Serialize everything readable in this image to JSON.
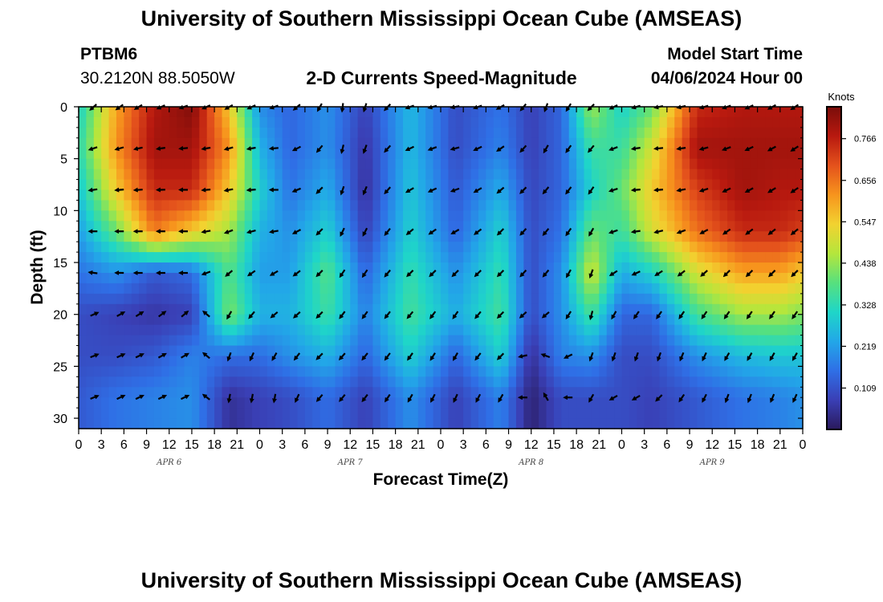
{
  "header": {
    "title": "University of Southern Mississippi Ocean Cube (AMSEAS)",
    "station_id": "PTBM6",
    "station_coords": "30.2120N  88.5050W",
    "subtitle": "2-D Currents Speed-Magnitude",
    "model_start_label": "Model Start Time",
    "model_start_value": "04/06/2024 Hour 00"
  },
  "footer": {
    "title": "University of Southern Mississippi Ocean Cube (AMSEAS)"
  },
  "colors": {
    "scale": [
      "#2a1a5c",
      "#3a3fb5",
      "#2f6fe6",
      "#22a7e8",
      "#1fd6c8",
      "#57e07e",
      "#b5e63c",
      "#f2d230",
      "#f7941d",
      "#e4521c",
      "#b8190f",
      "#7a0d0a"
    ]
  },
  "chart_data": {
    "type": "heatmap",
    "title": "2-D Currents Speed-Magnitude",
    "xlabel": "Forecast Time(Z)",
    "ylabel": "Depth (ft)",
    "xlim": [
      0,
      96
    ],
    "ylim": [
      0,
      31
    ],
    "x_ticks": [
      "0",
      "3",
      "6",
      "9",
      "12",
      "15",
      "18",
      "21",
      "0",
      "3",
      "6",
      "9",
      "12",
      "15",
      "18",
      "21",
      "0",
      "3",
      "6",
      "9",
      "12",
      "15",
      "18",
      "21",
      "0",
      "3",
      "6",
      "9",
      "12",
      "15",
      "18",
      "21",
      "0"
    ],
    "y_ticks": [
      "0",
      "5",
      "10",
      "15",
      "20",
      "25",
      "30"
    ],
    "y_tick_values": [
      0,
      5,
      10,
      15,
      20,
      25,
      30
    ],
    "date_labels": [
      {
        "label": "APR 6",
        "hour": 12
      },
      {
        "label": "APR 7",
        "hour": 36
      },
      {
        "label": "APR 8",
        "hour": 60
      },
      {
        "label": "APR 9",
        "hour": 84
      }
    ],
    "colorbar": {
      "units": "Knots",
      "range": [
        0,
        0.85
      ],
      "ticks": [
        "0.766",
        "0.656",
        "0.547",
        "0.438",
        "0.328",
        "0.219",
        "0.109"
      ],
      "tick_values": [
        0.766,
        0.656,
        0.547,
        0.438,
        0.328,
        0.219,
        0.109
      ]
    },
    "arrow_depths_ft": [
      0,
      4,
      8,
      12,
      16,
      20,
      24,
      28
    ],
    "arrow_hours": [
      2,
      5.5,
      8,
      11,
      14,
      17,
      20,
      23,
      26,
      29,
      32,
      35,
      38,
      41,
      44,
      47,
      50,
      53,
      56,
      59,
      62,
      65,
      68,
      71,
      74,
      77,
      80,
      83,
      86,
      89,
      92,
      95
    ],
    "speed_anchors": [
      {
        "hour": 0,
        "speeds": [
          0.3,
          0.33,
          0.28,
          0.22,
          0.16,
          0.1,
          0.1,
          0.12
        ]
      },
      {
        "hour": 5,
        "speeds": [
          0.6,
          0.62,
          0.55,
          0.4,
          0.2,
          0.08,
          0.1,
          0.16
        ]
      },
      {
        "hour": 10,
        "speeds": [
          0.78,
          0.8,
          0.75,
          0.65,
          0.12,
          0.06,
          0.12,
          0.18
        ]
      },
      {
        "hour": 15,
        "speeds": [
          0.84,
          0.8,
          0.75,
          0.55,
          0.15,
          0.08,
          0.18,
          0.2
        ]
      },
      {
        "hour": 20,
        "speeds": [
          0.55,
          0.62,
          0.55,
          0.45,
          0.38,
          0.42,
          0.15,
          0.05
        ]
      },
      {
        "hour": 24,
        "speeds": [
          0.2,
          0.25,
          0.3,
          0.25,
          0.22,
          0.25,
          0.15,
          0.08
        ]
      },
      {
        "hour": 28,
        "speeds": [
          0.14,
          0.14,
          0.16,
          0.2,
          0.22,
          0.25,
          0.2,
          0.1
        ]
      },
      {
        "hour": 33,
        "speeds": [
          0.2,
          0.2,
          0.24,
          0.3,
          0.38,
          0.35,
          0.25,
          0.15
        ]
      },
      {
        "hour": 38,
        "speeds": [
          0.08,
          0.06,
          0.05,
          0.08,
          0.14,
          0.18,
          0.14,
          0.08
        ]
      },
      {
        "hour": 44,
        "speeds": [
          0.26,
          0.26,
          0.28,
          0.3,
          0.34,
          0.36,
          0.3,
          0.2
        ]
      },
      {
        "hour": 50,
        "speeds": [
          0.1,
          0.1,
          0.12,
          0.14,
          0.2,
          0.24,
          0.14,
          0.08
        ]
      },
      {
        "hour": 56,
        "speeds": [
          0.16,
          0.18,
          0.24,
          0.3,
          0.34,
          0.36,
          0.3,
          0.18
        ]
      },
      {
        "hour": 60,
        "speeds": [
          0.08,
          0.08,
          0.09,
          0.1,
          0.1,
          0.1,
          0.05,
          0.02
        ]
      },
      {
        "hour": 64,
        "speeds": [
          0.14,
          0.14,
          0.14,
          0.16,
          0.2,
          0.2,
          0.18,
          0.1
        ]
      },
      {
        "hour": 68,
        "speeds": [
          0.45,
          0.35,
          0.3,
          0.4,
          0.5,
          0.36,
          0.2,
          0.1
        ]
      },
      {
        "hour": 72,
        "speeds": [
          0.3,
          0.35,
          0.4,
          0.35,
          0.24,
          0.14,
          0.1,
          0.1
        ]
      },
      {
        "hour": 76,
        "speeds": [
          0.4,
          0.5,
          0.55,
          0.5,
          0.3,
          0.14,
          0.1,
          0.08
        ]
      },
      {
        "hour": 82,
        "speeds": [
          0.75,
          0.8,
          0.72,
          0.66,
          0.5,
          0.36,
          0.2,
          0.12
        ]
      },
      {
        "hour": 88,
        "speeds": [
          0.78,
          0.8,
          0.8,
          0.75,
          0.6,
          0.45,
          0.26,
          0.16
        ]
      },
      {
        "hour": 93,
        "speeds": [
          0.78,
          0.8,
          0.78,
          0.75,
          0.6,
          0.45,
          0.28,
          0.18
        ]
      },
      {
        "hour": 96,
        "speeds": [
          0.78,
          0.8,
          0.78,
          0.72,
          0.55,
          0.42,
          0.28,
          0.2
        ]
      }
    ],
    "direction_anchors_deg": [
      {
        "hour": 0,
        "dirs": [
          225,
          200,
          190,
          180,
          170,
          20,
          20,
          20
        ]
      },
      {
        "hour": 6,
        "dirs": [
          215,
          195,
          185,
          180,
          180,
          30,
          25,
          25
        ]
      },
      {
        "hour": 14,
        "dirs": [
          200,
          185,
          180,
          180,
          180,
          40,
          30,
          25
        ]
      },
      {
        "hour": 20,
        "dirs": [
          210,
          195,
          190,
          200,
          220,
          240,
          250,
          260
        ]
      },
      {
        "hour": 26,
        "dirs": [
          200,
          185,
          180,
          190,
          210,
          220,
          240,
          260
        ]
      },
      {
        "hour": 32,
        "dirs": [
          240,
          230,
          225,
          225,
          225,
          225,
          225,
          230
        ]
      },
      {
        "hour": 36,
        "dirs": [
          270,
          265,
          260,
          250,
          240,
          235,
          230,
          230
        ]
      },
      {
        "hour": 44,
        "dirs": [
          200,
          205,
          210,
          220,
          225,
          230,
          235,
          240
        ]
      },
      {
        "hour": 50,
        "dirs": [
          190,
          195,
          200,
          210,
          225,
          235,
          240,
          245
        ]
      },
      {
        "hour": 56,
        "dirs": [
          210,
          215,
          220,
          225,
          225,
          225,
          225,
          240
        ]
      },
      {
        "hour": 62,
        "dirs": [
          250,
          240,
          230,
          230,
          230,
          220,
          160,
          120
        ]
      },
      {
        "hour": 68,
        "dirs": [
          225,
          230,
          235,
          240,
          250,
          255,
          250,
          240
        ]
      },
      {
        "hour": 72,
        "dirs": [
          200,
          190,
          185,
          185,
          200,
          235,
          250,
          200
        ]
      },
      {
        "hour": 78,
        "dirs": [
          190,
          185,
          185,
          195,
          215,
          235,
          250,
          230
        ]
      },
      {
        "hour": 86,
        "dirs": [
          200,
          200,
          205,
          215,
          225,
          235,
          240,
          250
        ]
      },
      {
        "hour": 96,
        "dirs": [
          215,
          215,
          215,
          220,
          225,
          235,
          240,
          245
        ]
      }
    ]
  }
}
